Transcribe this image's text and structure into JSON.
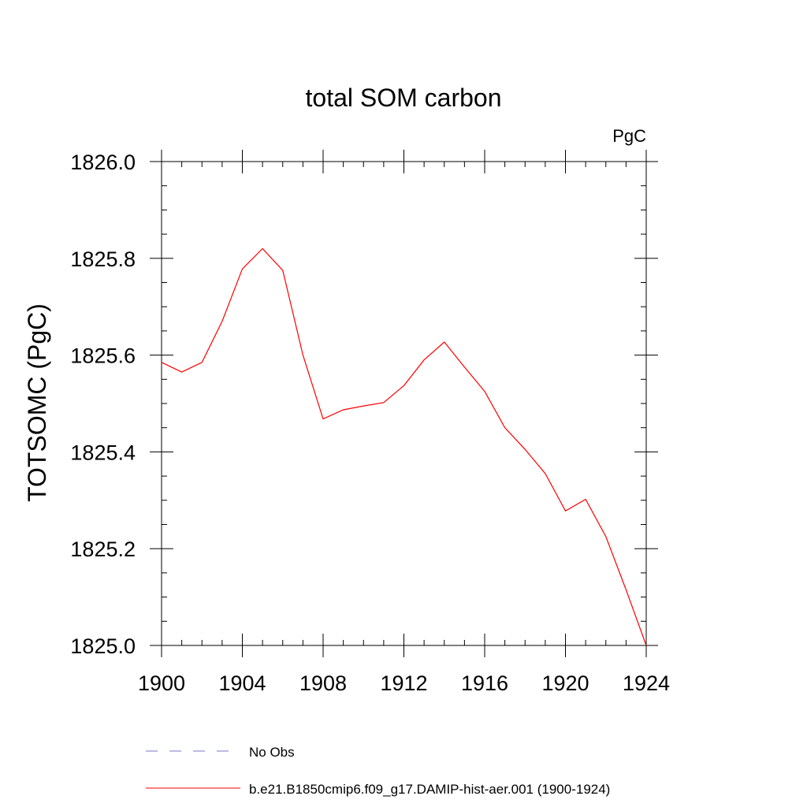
{
  "chart_data": {
    "type": "line",
    "title": "total SOM carbon",
    "units_label": "PgC",
    "ylabel": "TOTSOMC  (PgC)",
    "xlabel": "",
    "xlim": [
      1900,
      1924
    ],
    "ylim": [
      1825.0,
      1826.0
    ],
    "x_ticks": [
      "1900",
      "1904",
      "1908",
      "1912",
      "1916",
      "1920",
      "1924"
    ],
    "y_ticks": [
      "1825.0",
      "1825.2",
      "1825.4",
      "1825.6",
      "1825.8",
      "1826.0"
    ],
    "grid": false,
    "legend_position": "bottom",
    "series": [
      {
        "name": "b.e21.B1850cmip6.f09_g17.DAMIP-hist-aer.001 (1900-1924)",
        "color": "#ff0000",
        "dash": "solid",
        "x": [
          1900,
          1901,
          1902,
          1903,
          1904,
          1905,
          1906,
          1907,
          1908,
          1909,
          1910,
          1911,
          1912,
          1913,
          1914,
          1915,
          1916,
          1917,
          1918,
          1919,
          1920,
          1921,
          1922,
          1923,
          1924
        ],
        "y": [
          1825.585,
          1825.565,
          1825.585,
          1825.67,
          1825.778,
          1825.82,
          1825.775,
          1825.6,
          1825.468,
          1825.487,
          1825.495,
          1825.502,
          1825.537,
          1825.59,
          1825.627,
          1825.575,
          1825.525,
          1825.45,
          1825.405,
          1825.355,
          1825.278,
          1825.302,
          1825.225,
          1825.115,
          1825.0
        ]
      }
    ],
    "legend": [
      {
        "label": "No Obs",
        "color": "#7777cc",
        "dash": "dashed"
      },
      {
        "label": "b.e21.B1850cmip6.f09_g17.DAMIP-hist-aer.001 (1900-1924)",
        "color": "#ff0000",
        "dash": "solid"
      }
    ]
  }
}
